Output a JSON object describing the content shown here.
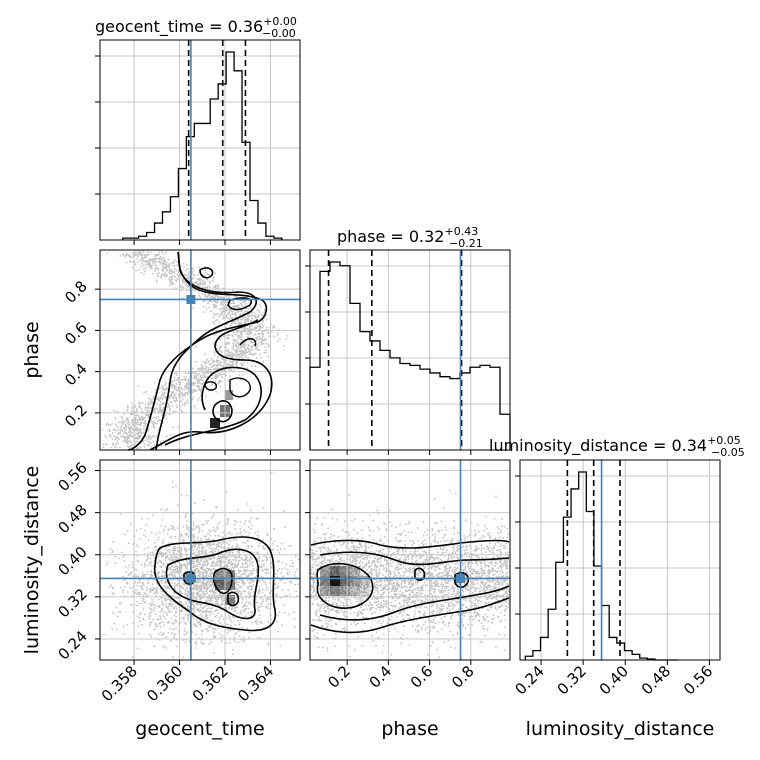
{
  "chart_data": {
    "type": "corner",
    "colors": {
      "truth": "#4682b4",
      "hist": "#000000",
      "grid": "#c8c8c8",
      "density": "#000000"
    },
    "parameters": [
      {
        "name": "geocent_time",
        "label": "geocent_time",
        "range": [
          0.3565,
          0.3653
        ],
        "truth": 0.3605,
        "ticks": [
          0.358,
          0.36,
          0.362,
          0.364
        ],
        "tick_labels": [
          "0.358",
          "0.360",
          "0.362",
          "0.364"
        ],
        "title_main": "geocent_time = 0.36",
        "title_sup": "+0.00",
        "title_sub": "−0.00",
        "quantiles": [
          0.3604,
          0.3619,
          0.3629
        ]
      },
      {
        "name": "phase",
        "label": "phase",
        "range": [
          0.02,
          0.99
        ],
        "truth": 0.75,
        "ticks": [
          0.2,
          0.4,
          0.6,
          0.8
        ],
        "tick_labels": [
          "0.2",
          "0.4",
          "0.6",
          "0.8"
        ],
        "title_main": "phase = 0.32",
        "title_sup": "+0.43",
        "title_sub": "−0.21",
        "quantiles": [
          0.11,
          0.32,
          0.755
        ]
      },
      {
        "name": "luminosity_distance",
        "label": "luminosity_distance",
        "range": [
          0.2,
          0.58
        ],
        "truth": 0.355,
        "ticks": [
          0.24,
          0.32,
          0.4,
          0.48,
          0.56
        ],
        "tick_labels": [
          "0.24",
          "0.32",
          "0.40",
          "0.48",
          "0.56"
        ],
        "title_main": "luminosity_distance = 0.34",
        "title_sup": "+0.05",
        "title_sub": "−0.05",
        "quantiles": [
          0.29,
          0.34,
          0.39
        ]
      }
    ],
    "histograms": {
      "geocent_time": [
        0.01,
        0.01,
        0.02,
        0.04,
        0.09,
        0.15,
        0.23,
        0.38,
        0.55,
        0.62,
        0.62,
        0.75,
        0.83,
        1.0,
        0.9,
        0.52,
        0.21,
        0.09,
        0.02,
        0.01
      ],
      "phase": [
        0.44,
        0.95,
        1.0,
        0.98,
        0.78,
        0.63,
        0.58,
        0.53,
        0.49,
        0.46,
        0.45,
        0.43,
        0.41,
        0.39,
        0.38,
        0.41,
        0.44,
        0.45,
        0.44,
        0.19
      ],
      "luminosity_distance": [
        0.02,
        0.05,
        0.12,
        0.27,
        0.52,
        0.76,
        0.91,
        1.0,
        0.79,
        0.5,
        0.29,
        0.12,
        0.09,
        0.05,
        0.03,
        0.01,
        0.005,
        0.0,
        0.0,
        0.0
      ]
    },
    "grid": true
  }
}
